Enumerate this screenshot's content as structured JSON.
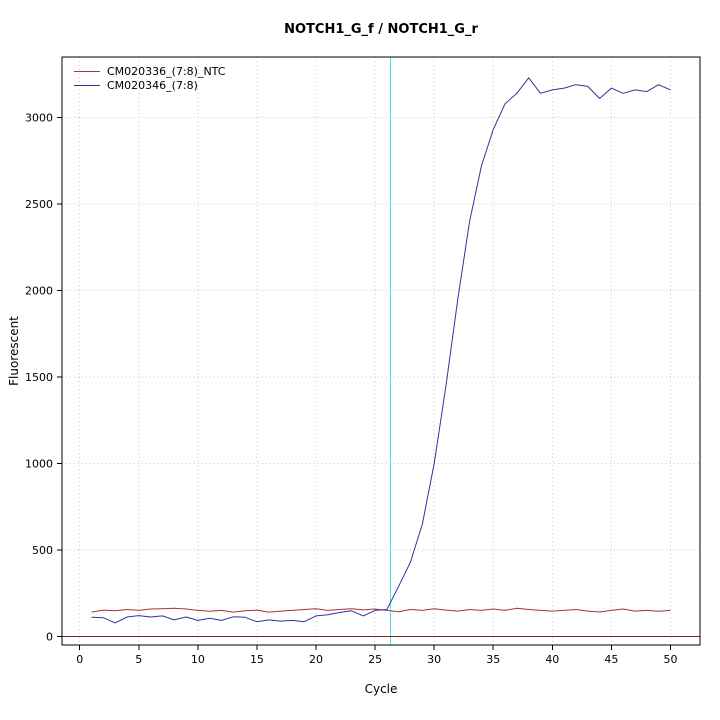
{
  "chart_data": {
    "type": "line",
    "title": "NOTCH1_G_f / NOTCH1_G_r",
    "xlabel": "Cycle",
    "ylabel": "Fluorescent",
    "x_ticks": [
      0,
      5,
      10,
      15,
      20,
      25,
      30,
      35,
      40,
      45,
      50
    ],
    "y_ticks": [
      0,
      500,
      1000,
      1500,
      2000,
      2500,
      3000
    ],
    "xlim": [
      0,
      50
    ],
    "ylim": [
      0,
      3000
    ],
    "grid": true,
    "legend_position": "top-left",
    "threshold_line_y": 0,
    "ct_line_x": 26.3,
    "colors": {
      "grid": "#c6c6c6",
      "box": "#000000",
      "threshold_line": "#8b2020",
      "ct_line": "#45e0e0",
      "ntc_red": "#a93434",
      "sample_blue": "#3333a0"
    },
    "cycles": [
      1,
      2,
      3,
      4,
      5,
      6,
      7,
      8,
      9,
      10,
      11,
      12,
      13,
      14,
      15,
      16,
      17,
      18,
      19,
      20,
      21,
      22,
      23,
      24,
      25,
      26,
      27,
      28,
      29,
      30,
      31,
      32,
      33,
      34,
      35,
      36,
      37,
      38,
      39,
      40,
      41,
      42,
      43,
      44,
      45,
      46,
      47,
      48,
      49,
      50
    ],
    "series": [
      {
        "name": "CM020336_(7:8)_NTC",
        "color_key": "ntc_red",
        "values": [
          140,
          152,
          148,
          155,
          150,
          158,
          160,
          163,
          158,
          150,
          145,
          150,
          140,
          148,
          152,
          140,
          146,
          150,
          155,
          160,
          150,
          155,
          160,
          153,
          158,
          150,
          142,
          155,
          150,
          160,
          152,
          146,
          155,
          150,
          158,
          150,
          163,
          155,
          150,
          146,
          150,
          155,
          146,
          141,
          150,
          158,
          146,
          150,
          145,
          150
        ]
      },
      {
        "name": "CM020346_(7:8)",
        "color_key": "sample_blue",
        "values": [
          110,
          108,
          78,
          112,
          120,
          112,
          118,
          95,
          112,
          92,
          105,
          92,
          113,
          110,
          85,
          95,
          88,
          92,
          85,
          118,
          125,
          138,
          148,
          118,
          150,
          155,
          290,
          430,
          650,
          1000,
          1450,
          1950,
          2400,
          2720,
          2930,
          3080,
          3140,
          3230,
          3140,
          3160,
          3170,
          3190,
          3180,
          3110,
          3170,
          3140,
          3160,
          3150,
          3190,
          3160
        ]
      }
    ]
  }
}
